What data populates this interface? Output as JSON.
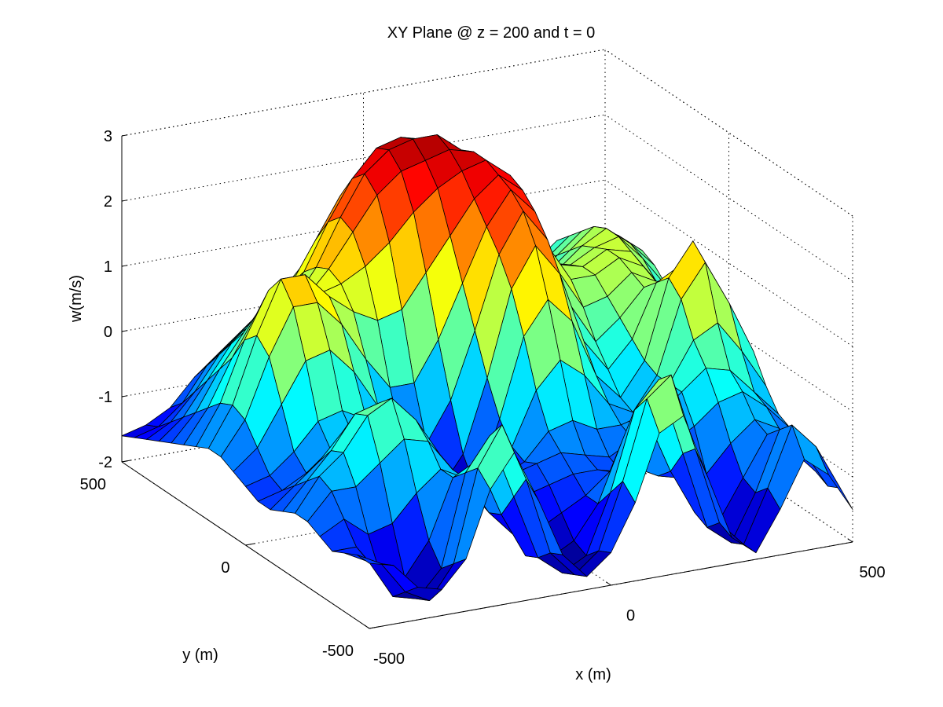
{
  "chart_data": {
    "type": "surface",
    "title": "XY Plane @ z = 200 and t = 0",
    "xlabel": "x (m)",
    "ylabel": "y (m)",
    "zlabel": "w(m/s)",
    "xlim": [
      -500,
      500
    ],
    "ylim": [
      -500,
      500
    ],
    "zlim": [
      -2,
      3
    ],
    "x_ticks": [
      "-500",
      "0",
      "500"
    ],
    "y_ticks": [
      "-500",
      "0",
      "500"
    ],
    "z_ticks": [
      "-2",
      "-1",
      "0",
      "1",
      "2",
      "3"
    ],
    "grid": true,
    "colormap": "jet",
    "x": [
      -500,
      -450,
      -400,
      -350,
      -300,
      -250,
      -200,
      -150,
      -100,
      -50,
      0,
      50,
      100,
      150,
      200,
      250,
      300,
      350,
      400,
      450,
      500
    ],
    "y": [
      -500,
      -450,
      -400,
      -350,
      -300,
      -250,
      -200,
      -150,
      -100,
      -50,
      0,
      50,
      100,
      150,
      200,
      250,
      300,
      350,
      400,
      450,
      500
    ],
    "w": [
      [
        -1.0,
        -1.1,
        -1.5,
        -1.6,
        -1.2,
        -0.2,
        0.3,
        -0.5,
        -1.4,
        -1.8,
        -1.5,
        -0.8,
        0.2,
        0.4,
        -0.6,
        -1.6,
        -1.9,
        -1.3,
        -0.6,
        -0.9,
        -1.5
      ],
      [
        -1.0,
        -1.2,
        -1.7,
        -1.9,
        -1.4,
        0.0,
        0.6,
        -0.3,
        -1.5,
        -1.9,
        -1.6,
        -0.6,
        0.6,
        0.9,
        -0.3,
        -1.5,
        -1.9,
        -1.1,
        -0.2,
        -0.6,
        -1.3
      ],
      [
        -1.1,
        -1.3,
        -1.9,
        -2.0,
        -1.6,
        -0.2,
        0.3,
        -0.7,
        -1.7,
        -2.0,
        -1.8,
        -0.9,
        0.3,
        0.7,
        -0.5,
        -1.7,
        -2.0,
        -1.3,
        -0.4,
        -0.8,
        -1.4
      ],
      [
        -1.2,
        -1.2,
        -1.7,
        -1.8,
        -1.3,
        -0.4,
        -0.2,
        -1.1,
        -1.8,
        -1.9,
        -1.7,
        -1.2,
        -0.3,
        0.0,
        -0.9,
        -1.6,
        -1.8,
        -1.2,
        -0.6,
        -0.9,
        -1.3
      ],
      [
        -1.1,
        -0.9,
        -1.2,
        -1.1,
        -0.7,
        -0.4,
        -0.6,
        -1.2,
        -1.6,
        -1.6,
        -1.4,
        -1.2,
        -0.9,
        -0.9,
        -1.1,
        -1.2,
        -1.2,
        -0.8,
        -0.5,
        -0.7,
        -1.1
      ],
      [
        -1.0,
        -0.6,
        -0.6,
        -0.3,
        0.0,
        -0.1,
        -0.6,
        -1.1,
        -1.3,
        -1.2,
        -1.1,
        -1.0,
        -1.0,
        -1.1,
        -1.0,
        -0.8,
        -0.6,
        -0.3,
        -0.2,
        -0.5,
        -0.9
      ],
      [
        -1.0,
        -0.5,
        -0.2,
        0.3,
        0.5,
        0.1,
        -0.5,
        -1.0,
        -1.2,
        -1.0,
        -0.9,
        -0.8,
        -0.9,
        -1.0,
        -0.8,
        -0.5,
        -0.2,
        0.1,
        0.0,
        -0.4,
        -0.8
      ],
      [
        -1.1,
        -0.7,
        -0.3,
        0.2,
        0.3,
        0.0,
        -0.5,
        -1.1,
        -1.5,
        -1.2,
        -1.0,
        -0.6,
        -0.5,
        -0.7,
        -0.7,
        -0.6,
        -0.2,
        0.4,
        0.6,
        0.1,
        -0.5
      ],
      [
        -1.2,
        -0.9,
        -0.6,
        -0.2,
        -0.1,
        -0.3,
        -0.8,
        -1.4,
        -1.8,
        -1.5,
        -0.9,
        -0.1,
        0.3,
        0.0,
        -0.5,
        -0.7,
        -0.2,
        0.9,
        1.4,
        0.7,
        -0.1
      ],
      [
        -1.2,
        -1.1,
        -0.9,
        -0.6,
        -0.5,
        -0.6,
        -1.1,
        -1.6,
        -2.0,
        -1.6,
        -0.6,
        0.6,
        1.1,
        0.7,
        -0.2,
        -0.6,
        -0.1,
        1.1,
        1.6,
        0.8,
        0.0
      ],
      [
        -1.1,
        -1.0,
        -0.7,
        -0.3,
        -0.2,
        -0.4,
        -0.9,
        -1.5,
        -1.7,
        -1.2,
        -0.1,
        1.2,
        1.8,
        1.3,
        0.2,
        -0.3,
        0.1,
        0.9,
        1.1,
        0.4,
        -0.2
      ],
      [
        -1.0,
        -0.7,
        -0.1,
        0.5,
        0.6,
        0.2,
        -0.4,
        -1.0,
        -1.1,
        -0.5,
        0.5,
        1.6,
        2.2,
        1.7,
        0.6,
        0.0,
        0.3,
        0.7,
        0.7,
        0.1,
        -0.4
      ],
      [
        -0.9,
        -0.4,
        0.5,
        1.2,
        1.2,
        0.8,
        0.2,
        -0.3,
        -0.3,
        0.3,
        1.1,
        1.9,
        2.4,
        2.0,
        1.0,
        0.4,
        0.5,
        0.8,
        0.6,
        0.0,
        -0.5
      ],
      [
        -0.9,
        -0.3,
        0.7,
        1.5,
        1.5,
        1.1,
        0.8,
        0.6,
        0.7,
        1.2,
        1.7,
        2.2,
        2.5,
        2.2,
        1.3,
        0.7,
        0.7,
        0.9,
        0.7,
        0.1,
        -0.4
      ],
      [
        -1.0,
        -0.4,
        0.5,
        1.2,
        1.3,
        1.0,
        1.1,
        1.3,
        1.6,
        2.0,
        2.3,
        2.5,
        2.6,
        2.3,
        1.5,
        0.8,
        0.7,
        0.9,
        0.8,
        0.3,
        -0.2
      ],
      [
        -1.1,
        -0.6,
        0.1,
        0.7,
        0.9,
        0.8,
        1.2,
        1.7,
        2.2,
        2.5,
        2.6,
        2.7,
        2.6,
        2.2,
        1.4,
        0.7,
        0.6,
        0.8,
        0.9,
        0.5,
        0.0
      ],
      [
        -1.2,
        -0.8,
        -0.2,
        0.3,
        0.5,
        0.6,
        1.1,
        1.8,
        2.4,
        2.7,
        2.8,
        2.8,
        2.5,
        2.0,
        1.2,
        0.5,
        0.4,
        0.7,
        0.9,
        0.6,
        0.2
      ],
      [
        -1.3,
        -1.0,
        -0.5,
        0.0,
        0.2,
        0.4,
        0.9,
        1.6,
        2.2,
        2.6,
        2.7,
        2.6,
        2.3,
        1.7,
        0.9,
        0.3,
        0.2,
        0.5,
        0.8,
        0.6,
        0.3
      ],
      [
        -1.4,
        -1.2,
        -0.8,
        -0.3,
        0.0,
        0.2,
        0.6,
        1.2,
        1.8,
        2.1,
        2.2,
        2.1,
        1.8,
        1.3,
        0.6,
        0.1,
        0.0,
        0.3,
        0.6,
        0.5,
        0.2
      ],
      [
        -1.5,
        -1.4,
        -1.1,
        -0.6,
        -0.3,
        0.0,
        0.3,
        0.7,
        1.1,
        1.4,
        1.5,
        1.4,
        1.2,
        0.8,
        0.3,
        -0.1,
        -0.2,
        0.1,
        0.4,
        0.3,
        0.0
      ],
      [
        -1.6,
        -1.5,
        -1.3,
        -0.9,
        -0.6,
        -0.3,
        0.0,
        0.3,
        0.6,
        0.8,
        0.9,
        0.9,
        0.7,
        0.4,
        0.0,
        -0.3,
        -0.4,
        -0.1,
        0.2,
        0.1,
        -0.2
      ]
    ]
  }
}
